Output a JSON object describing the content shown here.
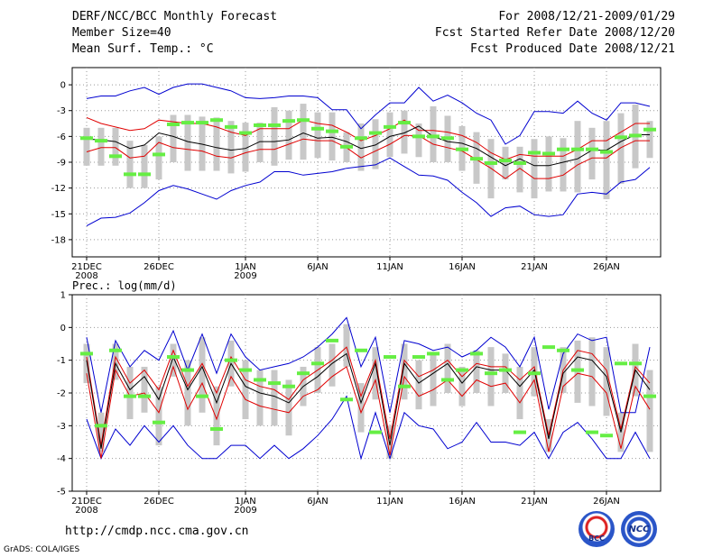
{
  "header": {
    "title": "DERF/NCC/BCC Monthly Forecast",
    "member_size": "Member Size=40",
    "variable_top": "Mean Surf. Temp.: °C",
    "period": "For 2008/12/21-2009/01/29",
    "started": "Fcst Started Refer Date 2008/12/20",
    "produced": "Fcst Produced Date 2008/12/21"
  },
  "footer": {
    "url": "http://cmdp.ncc.cma.gov.cn",
    "credit": "GrADS: COLA/IGES",
    "logo_left_text": "BCC",
    "logo_right_text": "NCC"
  },
  "colors": {
    "blue": "#0000d0",
    "red": "#e00000",
    "black": "#000000",
    "green": "#66ee44",
    "gray": "#c8c8c8"
  },
  "chart_data": [
    {
      "type": "line",
      "title": "Mean Surf. Temp.: °C",
      "x_days": 40,
      "ylim": [
        -20,
        2
      ],
      "yticks": [
        0,
        -3,
        -6,
        -9,
        -12,
        -15,
        -18
      ],
      "ytick_labels": [
        "0",
        "-3",
        "-6",
        "-9",
        "-12",
        "-15",
        "-18"
      ],
      "xticks": [
        {
          "day": 0,
          "label": "21DEC",
          "sub": "2008"
        },
        {
          "day": 5,
          "label": "26DEC",
          "sub": ""
        },
        {
          "day": 11,
          "label": "1JAN",
          "sub": "2009"
        },
        {
          "day": 16,
          "label": "6JAN",
          "sub": ""
        },
        {
          "day": 21,
          "label": "11JAN",
          "sub": ""
        },
        {
          "day": 26,
          "label": "16JAN",
          "sub": ""
        },
        {
          "day": 31,
          "label": "21JAN",
          "sub": ""
        },
        {
          "day": 36,
          "label": "26JAN",
          "sub": ""
        }
      ],
      "series": [
        {
          "name": "max",
          "color": "blue",
          "values": [
            -1.6,
            -1.3,
            -1.3,
            -0.7,
            -0.3,
            -1.1,
            -0.3,
            0.1,
            0.1,
            -0.3,
            -0.7,
            -1.5,
            -1.6,
            -1.5,
            -1.3,
            -1.3,
            -1.5,
            -2.9,
            -2.9,
            -5.1,
            -3.5,
            -2.1,
            -2.1,
            -0.3,
            -1.9,
            -1.2,
            -2.1,
            -3.3,
            -4.1,
            -6.9,
            -5.9,
            -3.1,
            -3.1,
            -3.3,
            -1.9,
            -3.3,
            -4.1,
            -2.1,
            -2.1,
            -2.5
          ]
        },
        {
          "name": "upper",
          "color": "red",
          "values": [
            -3.8,
            -4.5,
            -4.9,
            -5.3,
            -5.1,
            -4.1,
            -4.3,
            -4.5,
            -4.5,
            -4.9,
            -5.5,
            -5.9,
            -5.1,
            -5.1,
            -5.1,
            -4.1,
            -4.5,
            -4.7,
            -5.5,
            -6.5,
            -5.9,
            -5.1,
            -4.1,
            -5.3,
            -5.3,
            -5.5,
            -5.9,
            -6.7,
            -7.9,
            -8.7,
            -8.1,
            -8.3,
            -8.3,
            -8.3,
            -7.5,
            -6.5,
            -6.5,
            -5.5,
            -4.5,
            -4.5
          ]
        },
        {
          "name": "mean",
          "color": "black",
          "values": [
            -6.3,
            -6.4,
            -6.6,
            -7.4,
            -7.0,
            -5.6,
            -6.0,
            -6.6,
            -6.9,
            -7.3,
            -7.6,
            -7.4,
            -6.6,
            -6.6,
            -6.4,
            -5.6,
            -6.2,
            -6.1,
            -6.6,
            -7.4,
            -7.0,
            -6.0,
            -5.6,
            -4.8,
            -6.0,
            -6.6,
            -6.8,
            -7.4,
            -8.4,
            -9.4,
            -8.6,
            -9.4,
            -9.4,
            -9.0,
            -8.6,
            -7.6,
            -7.6,
            -6.6,
            -5.8,
            -5.8
          ]
        },
        {
          "name": "lower",
          "color": "red",
          "values": [
            -7.8,
            -7.3,
            -7.3,
            -8.5,
            -8.3,
            -6.7,
            -7.3,
            -7.5,
            -7.7,
            -8.3,
            -8.5,
            -7.9,
            -7.5,
            -7.5,
            -6.9,
            -6.3,
            -6.5,
            -6.5,
            -7.3,
            -8.5,
            -7.7,
            -6.9,
            -5.9,
            -5.9,
            -6.9,
            -7.3,
            -7.7,
            -8.7,
            -9.7,
            -10.9,
            -9.7,
            -10.9,
            -10.9,
            -10.5,
            -9.3,
            -8.5,
            -8.5,
            -7.3,
            -6.5,
            -6.5
          ]
        },
        {
          "name": "min",
          "color": "blue",
          "values": [
            -16.4,
            -15.5,
            -15.4,
            -14.9,
            -13.7,
            -12.3,
            -11.7,
            -12.1,
            -12.7,
            -13.3,
            -12.3,
            -11.7,
            -11.3,
            -10.1,
            -10.1,
            -10.5,
            -10.3,
            -10.1,
            -9.7,
            -9.5,
            -9.3,
            -8.5,
            -9.5,
            -10.5,
            -10.6,
            -11.1,
            -12.5,
            -13.7,
            -15.3,
            -14.3,
            -14.1,
            -15.1,
            -15.3,
            -15.1,
            -12.7,
            -12.5,
            -12.7,
            -11.3,
            -11.0,
            -9.6
          ]
        },
        {
          "name": "ensemble",
          "color": "green",
          "values": [
            -6.2,
            -6.5,
            -8.3,
            -10.4,
            -10.4,
            -8.1,
            -4.6,
            -4.4,
            -4.4,
            -4.1,
            -4.9,
            -5.6,
            -4.7,
            -4.7,
            -4.2,
            -4.1,
            -5.1,
            -5.4,
            -7.2,
            -6.2,
            -5.6,
            -4.9,
            -4.4,
            -6.0,
            -6.0,
            -6.2,
            -7.5,
            -8.6,
            -9.1,
            -8.8,
            -9.1,
            -7.9,
            -8.0,
            -7.5,
            -7.5,
            -7.5,
            -7.8,
            -6.1,
            -5.9,
            -5.2
          ]
        }
      ],
      "bars": {
        "name": "spread",
        "color": "gray",
        "low": [
          -9.4,
          -9.4,
          -9.4,
          -12.0,
          -12.0,
          -11.0,
          -9.0,
          -10.0,
          -10.0,
          -10.0,
          -10.3,
          -10.1,
          -9.0,
          -9.4,
          -8.7,
          -8.7,
          -8.5,
          -8.8,
          -9.0,
          -10.0,
          -9.8,
          -8.4,
          -8.0,
          -8.4,
          -9.0,
          -9.0,
          -10.0,
          -11.5,
          -13.2,
          -11.0,
          -12.5,
          -13.2,
          -12.4,
          -12.4,
          -12.5,
          -11.0,
          -13.3,
          -11.5,
          -9.7,
          -8.5
        ],
        "high": [
          -5.0,
          -5.0,
          -5.0,
          -6.5,
          -7.0,
          -6.0,
          -3.5,
          -3.5,
          -3.7,
          -3.8,
          -4.2,
          -4.4,
          -4.4,
          -2.6,
          -3.0,
          -2.2,
          -3.2,
          -3.2,
          -5.5,
          -4.5,
          -4.0,
          -3.2,
          -3.0,
          -4.5,
          -2.5,
          -3.6,
          -4.8,
          -5.5,
          -6.3,
          -7.2,
          -7.2,
          -6.3,
          -6.0,
          -6.2,
          -4.2,
          -5.0,
          -4.2,
          -3.3,
          -2.3,
          -4.2
        ]
      }
    },
    {
      "type": "line",
      "title": "Prec.: log(mm/d)",
      "x_days": 40,
      "ylim": [
        -5,
        1
      ],
      "yticks": [
        1,
        0,
        -1,
        -2,
        -3,
        -4,
        -5
      ],
      "ytick_labels": [
        "1",
        "0",
        "-1",
        "-2",
        "-3",
        "-4",
        "-5"
      ],
      "xticks": [
        {
          "day": 0,
          "label": "21DEC",
          "sub": "2008"
        },
        {
          "day": 5,
          "label": "26DEC",
          "sub": ""
        },
        {
          "day": 11,
          "label": "1JAN",
          "sub": "2009"
        },
        {
          "day": 16,
          "label": "6JAN",
          "sub": ""
        },
        {
          "day": 21,
          "label": "11JAN",
          "sub": ""
        },
        {
          "day": 26,
          "label": "16JAN",
          "sub": ""
        },
        {
          "day": 31,
          "label": "21JAN",
          "sub": ""
        },
        {
          "day": 36,
          "label": "26JAN",
          "sub": ""
        }
      ],
      "series": [
        {
          "name": "max",
          "color": "blue",
          "values": [
            -0.3,
            -2.6,
            -0.4,
            -1.2,
            -0.7,
            -1.0,
            -0.1,
            -1.3,
            -0.2,
            -1.4,
            -0.2,
            -0.9,
            -1.3,
            -1.2,
            -1.1,
            -0.9,
            -0.6,
            -0.2,
            0.3,
            -1.2,
            -0.3,
            -2.6,
            -0.4,
            -0.5,
            -0.7,
            -0.6,
            -0.9,
            -0.7,
            -0.3,
            -0.6,
            -1.2,
            -0.3,
            -2.5,
            -0.8,
            -0.2,
            -0.4,
            -0.3,
            -2.6,
            -2.6,
            -0.6
          ]
        },
        {
          "name": "upper",
          "color": "red",
          "values": [
            -0.9,
            -3.6,
            -0.9,
            -1.7,
            -1.3,
            -1.9,
            -0.7,
            -1.8,
            -1.1,
            -2.0,
            -0.9,
            -1.6,
            -1.8,
            -1.9,
            -2.2,
            -1.6,
            -1.3,
            -1.0,
            -0.6,
            -2.1,
            -1.0,
            -3.4,
            -1.0,
            -1.5,
            -1.3,
            -1.0,
            -1.5,
            -1.1,
            -1.2,
            -1.2,
            -1.6,
            -1.2,
            -3.3,
            -1.3,
            -0.7,
            -0.8,
            -1.3,
            -3.1,
            -1.2,
            -1.7
          ]
        },
        {
          "name": "mean",
          "color": "black",
          "values": [
            -1.0,
            -3.7,
            -1.1,
            -1.9,
            -1.5,
            -2.2,
            -0.9,
            -1.9,
            -1.2,
            -2.3,
            -1.1,
            -1.8,
            -2.0,
            -2.1,
            -2.3,
            -1.8,
            -1.5,
            -1.1,
            -0.8,
            -2.3,
            -1.1,
            -3.6,
            -1.1,
            -1.7,
            -1.4,
            -1.1,
            -1.7,
            -1.2,
            -1.3,
            -1.3,
            -1.8,
            -1.3,
            -3.4,
            -1.4,
            -0.9,
            -1.0,
            -1.5,
            -3.2,
            -1.3,
            -1.9
          ]
        },
        {
          "name": "lower",
          "color": "red",
          "values": [
            -1.4,
            -4.0,
            -1.3,
            -2.1,
            -2.0,
            -2.6,
            -1.2,
            -2.5,
            -1.7,
            -2.8,
            -1.5,
            -2.2,
            -2.4,
            -2.5,
            -2.6,
            -2.1,
            -1.9,
            -1.5,
            -1.2,
            -2.6,
            -1.6,
            -3.9,
            -1.5,
            -2.1,
            -1.9,
            -1.6,
            -2.1,
            -1.6,
            -1.8,
            -1.7,
            -2.3,
            -1.6,
            -3.8,
            -1.8,
            -1.4,
            -1.5,
            -2.0,
            -3.7,
            -1.8,
            -2.5
          ]
        },
        {
          "name": "min",
          "color": "blue",
          "values": [
            -2.8,
            -4.0,
            -3.1,
            -3.6,
            -3.0,
            -3.5,
            -3.0,
            -3.6,
            -4.0,
            -4.0,
            -3.6,
            -3.6,
            -4.0,
            -3.6,
            -4.0,
            -3.7,
            -3.3,
            -2.8,
            -2.1,
            -4.0,
            -2.6,
            -4.0,
            -2.6,
            -3.0,
            -3.1,
            -3.7,
            -3.5,
            -2.9,
            -3.5,
            -3.5,
            -3.6,
            -3.2,
            -4.0,
            -3.2,
            -2.9,
            -3.4,
            -4.0,
            -4.0,
            -3.2,
            -4.0
          ]
        },
        {
          "name": "ensemble",
          "color": "green",
          "values": [
            -0.8,
            -3.0,
            -0.7,
            -2.1,
            -2.1,
            -2.9,
            -0.9,
            -1.3,
            -2.1,
            -3.1,
            -1.0,
            -1.3,
            -1.6,
            -1.7,
            -1.8,
            -1.4,
            -1.1,
            -0.4,
            -2.2,
            -0.7,
            -3.2,
            -0.9,
            -1.8,
            -0.9,
            -0.8,
            -1.6,
            -1.3,
            -0.8,
            -1.4,
            -1.3,
            -3.2,
            -1.4,
            -0.6,
            -0.7,
            -1.3,
            -3.2,
            -3.3,
            -1.1,
            -1.1,
            -2.1
          ]
        }
      ],
      "bars": {
        "name": "spread",
        "color": "gray",
        "low": [
          -1.7,
          -3.8,
          -1.6,
          -2.8,
          -2.6,
          -3.6,
          -1.5,
          -3.0,
          -2.6,
          -3.6,
          -1.8,
          -2.8,
          -3.0,
          -3.0,
          -3.3,
          -2.4,
          -2.0,
          -1.8,
          -1.2,
          -3.2,
          -2.2,
          -4.0,
          -2.2,
          -2.5,
          -2.4,
          -2.0,
          -2.4,
          -2.0,
          -2.4,
          -2.0,
          -2.8,
          -2.1,
          -3.8,
          -2.0,
          -2.3,
          -2.4,
          -2.7,
          -3.8,
          -2.1,
          -3.8
        ],
        "high": [
          -0.5,
          -2.6,
          -0.5,
          -1.2,
          -1.2,
          -1.8,
          -0.5,
          -1.0,
          -0.3,
          -1.8,
          -0.4,
          -1.0,
          -1.3,
          -1.3,
          -1.6,
          -1.2,
          -0.6,
          -0.5,
          0.1,
          -1.7,
          -0.6,
          -3.0,
          -0.5,
          -1.0,
          -0.8,
          -0.5,
          -1.2,
          -0.7,
          -0.6,
          -0.8,
          -1.2,
          -0.6,
          -2.8,
          -0.6,
          -0.4,
          -0.3,
          -0.6,
          -2.6,
          -0.5,
          -1.3
        ]
      }
    }
  ]
}
